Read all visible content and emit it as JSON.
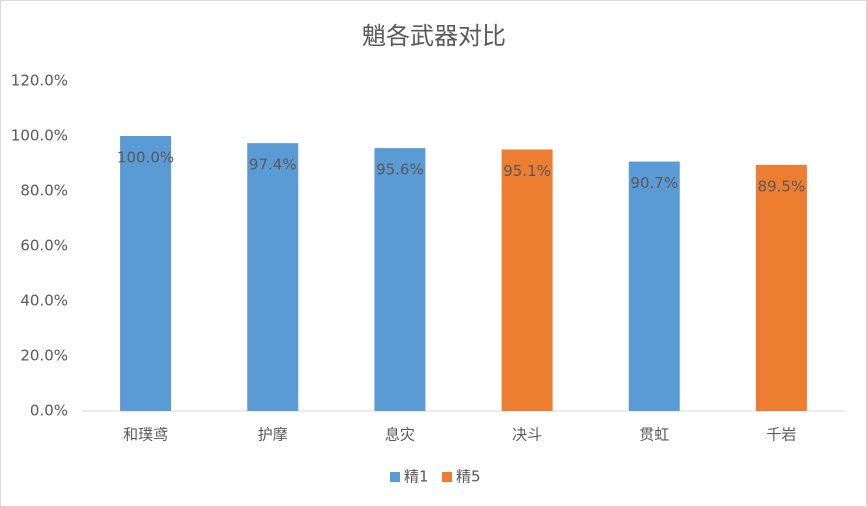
{
  "chart_data": {
    "type": "bar",
    "title": "魈各武器对比",
    "categories": [
      "和璞鸢",
      "护摩",
      "息灾",
      "决斗",
      "贯虹",
      "千岩"
    ],
    "series": [
      {
        "name": "精1",
        "color": "#5b9bd5",
        "values": [
          100,
          97.4,
          95.6,
          null,
          90.7,
          null
        ],
        "value_labels": [
          "100.0%",
          "97.4%",
          "95.6%",
          null,
          "90.7%",
          null
        ]
      },
      {
        "name": "精5",
        "color": "#ed7d31",
        "values": [
          null,
          null,
          null,
          95.1,
          null,
          89.5
        ],
        "value_labels": [
          null,
          null,
          null,
          "95.1%",
          null,
          "89.5%"
        ]
      }
    ],
    "ylim": [
      0,
      120
    ],
    "yticks": [
      {
        "value": 0,
        "label": "0.0%"
      },
      {
        "value": 20,
        "label": "20.0%"
      },
      {
        "value": 40,
        "label": "40.0%"
      },
      {
        "value": 60,
        "label": "60.0%"
      },
      {
        "value": 80,
        "label": "80.0%"
      },
      {
        "value": 100,
        "label": "100.0%"
      },
      {
        "value": 120,
        "label": "120.0%"
      }
    ],
    "grid": false,
    "legend": "bottom"
  }
}
